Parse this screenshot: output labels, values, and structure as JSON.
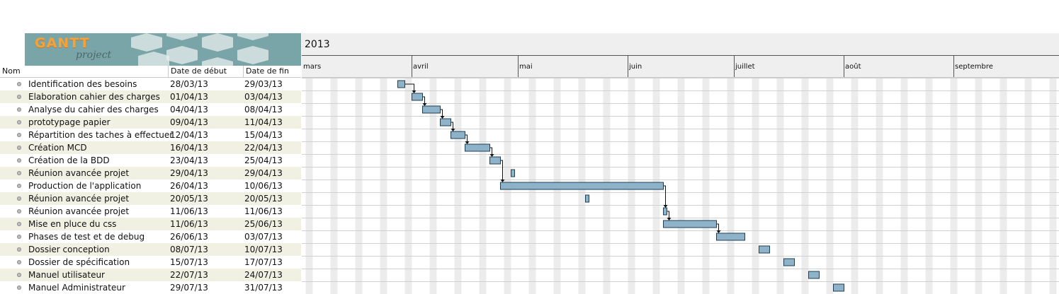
{
  "app": {
    "logo_main": "GANTT",
    "logo_sub": "project"
  },
  "table": {
    "columns": [
      "Nom",
      "Date de début",
      "Date de fin"
    ],
    "tasks": [
      {
        "name": "Identification des besoins",
        "start": "28/03/13",
        "end": "29/03/13"
      },
      {
        "name": "Elaboration cahier des charges",
        "start": "01/04/13",
        "end": "03/04/13"
      },
      {
        "name": "Analyse du cahier des charges",
        "start": "04/04/13",
        "end": "08/04/13"
      },
      {
        "name": "prototypage papier",
        "start": "09/04/13",
        "end": "11/04/13"
      },
      {
        "name": "Répartition des taches à effectuer",
        "start": "12/04/13",
        "end": "15/04/13"
      },
      {
        "name": "Création MCD",
        "start": "16/04/13",
        "end": "22/04/13"
      },
      {
        "name": "Création de la BDD",
        "start": "23/04/13",
        "end": "25/04/13"
      },
      {
        "name": "Réunion avancée projet",
        "start": "29/04/13",
        "end": "29/04/13"
      },
      {
        "name": "Production de l'application",
        "start": "26/04/13",
        "end": "10/06/13"
      },
      {
        "name": "Réunion avancée projet",
        "start": "20/05/13",
        "end": "20/05/13"
      },
      {
        "name": "Réunion avancée projet",
        "start": "11/06/13",
        "end": "11/06/13"
      },
      {
        "name": "Mise en pluce du css",
        "start": "11/06/13",
        "end": "25/06/13"
      },
      {
        "name": "Phases de test et de debug",
        "start": "26/06/13",
        "end": "03/07/13"
      },
      {
        "name": "Dossier conception",
        "start": "08/07/13",
        "end": "10/07/13"
      },
      {
        "name": "Dossier de spécification",
        "start": "15/07/13",
        "end": "17/07/13"
      },
      {
        "name": "Manuel utilisateur",
        "start": "22/07/13",
        "end": "24/07/13"
      },
      {
        "name": "Manuel Administrateur",
        "start": "29/07/13",
        "end": "31/07/13"
      }
    ]
  },
  "timeline": {
    "year": "2013",
    "months": [
      "mars",
      "avril",
      "mai",
      "juin",
      "juillet",
      "août",
      "septembre"
    ],
    "month_starts": [
      "2013-03-01",
      "2013-04-01",
      "2013-05-01",
      "2013-06-01",
      "2013-07-01",
      "2013-08-01",
      "2013-09-01"
    ],
    "dependencies": [
      [
        0,
        1
      ],
      [
        1,
        2
      ],
      [
        2,
        3
      ],
      [
        3,
        4
      ],
      [
        4,
        5
      ],
      [
        5,
        6
      ],
      [
        6,
        8
      ],
      [
        8,
        10
      ],
      [
        10,
        11
      ],
      [
        11,
        12
      ]
    ]
  },
  "colors": {
    "bar_fill": "#8eb3c8",
    "bar_stroke": "#1d3f57",
    "weekend": "#ececec",
    "row_alt": "#f0f0e3"
  }
}
